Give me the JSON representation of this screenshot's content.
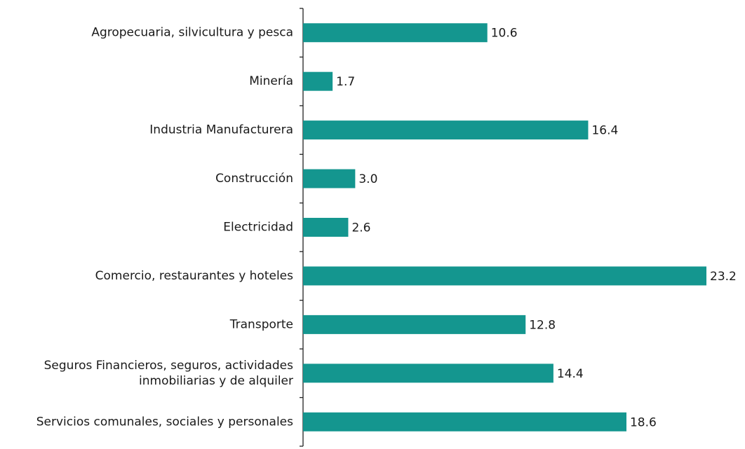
{
  "chart_data": {
    "type": "barh",
    "categories": [
      "Agropecuaria, silvicultura y pesca",
      "Minería",
      "Industria Manufacturera",
      "Construcción",
      "Electricidad",
      "Comercio, restaurantes y hoteles",
      "Transporte",
      "Seguros Financieros, seguros, actividades\ninmobiliarias y de alquiler",
      "Servicios comunales, sociales y personales"
    ],
    "values": [
      10.6,
      1.7,
      16.4,
      3.0,
      2.6,
      23.2,
      12.8,
      14.4,
      18.6
    ],
    "value_labels": [
      "10.6",
      "1.7",
      "16.4",
      "3.0",
      "2.6",
      "23.2",
      "12.8",
      "14.4",
      "18.6"
    ],
    "color": "#14968f"
  }
}
